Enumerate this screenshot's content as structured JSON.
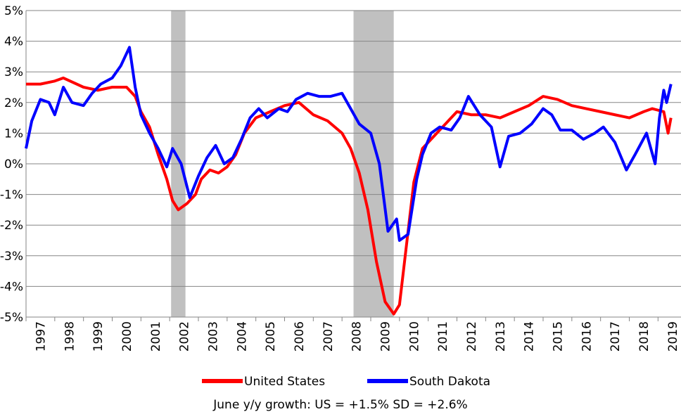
{
  "chart_data": {
    "type": "line",
    "annotation": "June y/y growth: US = +1.5%  SD = +2.6%",
    "xlim": [
      1997,
      2019.8
    ],
    "xticks": [
      1997,
      1998,
      1999,
      2000,
      2001,
      2002,
      2003,
      2004,
      2005,
      2006,
      2007,
      2008,
      2009,
      2010,
      2011,
      2012,
      2013,
      2014,
      2015,
      2016,
      2017,
      2018,
      2019
    ],
    "ylim": [
      -5,
      5
    ],
    "yticks": [
      {
        "value": -5,
        "label": "-5%"
      },
      {
        "value": -4,
        "label": "-4%"
      },
      {
        "value": -3,
        "label": "-3%"
      },
      {
        "value": -2,
        "label": "-2%"
      },
      {
        "value": -1,
        "label": "-1%"
      },
      {
        "value": 0,
        "label": "0%"
      },
      {
        "value": 1,
        "label": "1%"
      },
      {
        "value": 2,
        "label": "2%"
      },
      {
        "value": 3,
        "label": "3%"
      },
      {
        "value": 4,
        "label": "4%"
      },
      {
        "value": 5,
        "label": "5%"
      }
    ],
    "grid": true,
    "shaded_ranges": [
      [
        2002.05,
        2002.55
      ],
      [
        2008.4,
        2009.8
      ]
    ],
    "shade_color": "#c0c0c0",
    "legend": "bottom",
    "series": [
      {
        "name": "United States",
        "color": "#ff0000",
        "x": [
          1997,
          1997.5,
          1998,
          1998.3,
          1999,
          1999.5,
          2000,
          2000.5,
          2000.8,
          2001,
          2001.3,
          2001.6,
          2001.9,
          2002.1,
          2002.3,
          2002.6,
          2002.9,
          2003.1,
          2003.4,
          2003.7,
          2004,
          2004.3,
          2004.6,
          2005,
          2005.5,
          2006,
          2006.5,
          2007,
          2007.5,
          2008,
          2008.3,
          2008.6,
          2008.9,
          2009.2,
          2009.5,
          2009.8,
          2010,
          2010.2,
          2010.5,
          2010.8,
          2011.2,
          2011.6,
          2012,
          2012.5,
          2013,
          2013.5,
          2014,
          2014.5,
          2015,
          2015.5,
          2016,
          2016.5,
          2017,
          2017.5,
          2018,
          2018.5,
          2018.8,
          2019.2,
          2019.35,
          2019.45
        ],
        "values": [
          2.6,
          2.6,
          2.7,
          2.8,
          2.5,
          2.4,
          2.5,
          2.5,
          2.2,
          1.7,
          1.2,
          0.3,
          -0.5,
          -1.2,
          -1.5,
          -1.3,
          -1.0,
          -0.5,
          -0.2,
          -0.3,
          -0.1,
          0.3,
          1.0,
          1.5,
          1.7,
          1.9,
          2.0,
          1.6,
          1.4,
          1.0,
          0.5,
          -0.3,
          -1.5,
          -3.2,
          -4.5,
          -4.9,
          -4.6,
          -3.0,
          -0.6,
          0.5,
          0.9,
          1.3,
          1.7,
          1.6,
          1.6,
          1.5,
          1.7,
          1.9,
          2.2,
          2.1,
          1.9,
          1.8,
          1.7,
          1.6,
          1.5,
          1.7,
          1.8,
          1.7,
          1.0,
          1.5
        ]
      },
      {
        "name": "South Dakota",
        "color": "#0000ff",
        "x": [
          1997,
          1997.2,
          1997.5,
          1997.8,
          1998,
          1998.3,
          1998.6,
          1999,
          1999.3,
          1999.6,
          2000,
          2000.3,
          2000.6,
          2000.8,
          2001,
          2001.3,
          2001.6,
          2001.9,
          2002.1,
          2002.4,
          2002.7,
          2003,
          2003.3,
          2003.6,
          2003.9,
          2004.2,
          2004.5,
          2004.8,
          2005.1,
          2005.4,
          2005.8,
          2006.1,
          2006.4,
          2006.8,
          2007.2,
          2007.6,
          2008,
          2008.3,
          2008.6,
          2009,
          2009.3,
          2009.6,
          2009.9,
          2010,
          2010.3,
          2010.6,
          2010.8,
          2011.1,
          2011.4,
          2011.8,
          2012.1,
          2012.4,
          2012.8,
          2013.2,
          2013.5,
          2013.8,
          2014.2,
          2014.6,
          2015,
          2015.3,
          2015.6,
          2016,
          2016.4,
          2016.8,
          2017.1,
          2017.5,
          2017.9,
          2018.2,
          2018.6,
          2018.9,
          2019.05,
          2019.2,
          2019.3,
          2019.45
        ],
        "values": [
          0.5,
          1.4,
          2.1,
          2.0,
          1.6,
          2.5,
          2.0,
          1.9,
          2.3,
          2.6,
          2.8,
          3.2,
          3.8,
          2.5,
          1.6,
          1.0,
          0.5,
          -0.1,
          0.5,
          0.0,
          -1.1,
          -0.4,
          0.2,
          0.6,
          0.0,
          0.2,
          0.8,
          1.5,
          1.8,
          1.5,
          1.8,
          1.7,
          2.1,
          2.3,
          2.2,
          2.2,
          2.3,
          1.8,
          1.3,
          1.0,
          0.0,
          -2.2,
          -1.8,
          -2.5,
          -2.3,
          -0.5,
          0.3,
          1.0,
          1.2,
          1.1,
          1.5,
          2.2,
          1.6,
          1.2,
          -0.1,
          0.9,
          1.0,
          1.3,
          1.8,
          1.6,
          1.1,
          1.1,
          0.8,
          1.0,
          1.2,
          0.7,
          -0.2,
          0.3,
          1.0,
          0.0,
          1.5,
          2.4,
          2.0,
          2.6
        ]
      }
    ]
  }
}
